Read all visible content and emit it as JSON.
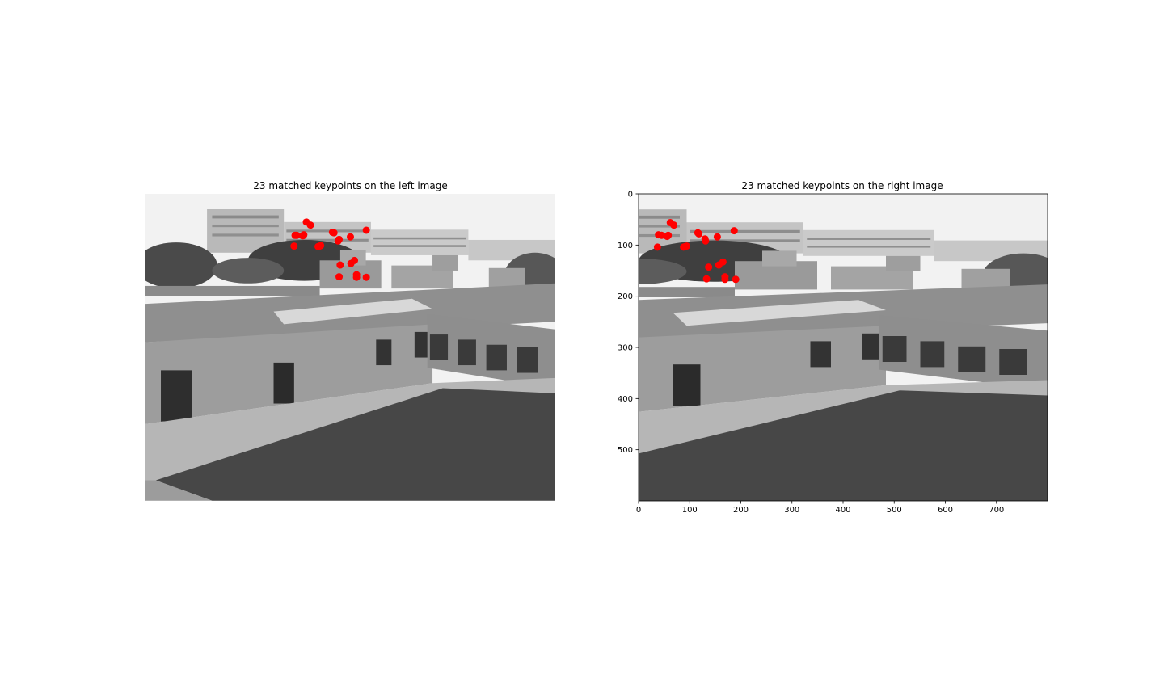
{
  "chart_data": [
    {
      "type": "scatter",
      "panel": "left",
      "title": "23 matched keypoints on the left image",
      "background": "grayscale photograph of a courtyard with surrounding buildings",
      "axes_visible": false,
      "xlim": [
        0,
        800
      ],
      "ylim": [
        600,
        0
      ],
      "marker_color": "#ff0000",
      "points": [
        {
          "x": 314,
          "y": 55
        },
        {
          "x": 322,
          "y": 61
        },
        {
          "x": 295,
          "y": 81
        },
        {
          "x": 292,
          "y": 81
        },
        {
          "x": 307,
          "y": 82
        },
        {
          "x": 309,
          "y": 80
        },
        {
          "x": 365,
          "y": 75
        },
        {
          "x": 431,
          "y": 71
        },
        {
          "x": 400,
          "y": 84
        },
        {
          "x": 378,
          "y": 89
        },
        {
          "x": 376,
          "y": 92
        },
        {
          "x": 290,
          "y": 102
        },
        {
          "x": 337,
          "y": 103
        },
        {
          "x": 342,
          "y": 101
        },
        {
          "x": 408,
          "y": 130
        },
        {
          "x": 401,
          "y": 136
        },
        {
          "x": 380,
          "y": 139
        },
        {
          "x": 412,
          "y": 158
        },
        {
          "x": 412,
          "y": 163
        },
        {
          "x": 431,
          "y": 163
        },
        {
          "x": 378,
          "y": 162
        },
        {
          "x": 368,
          "y": 76
        },
        {
          "x": 340,
          "y": 102
        }
      ]
    },
    {
      "type": "scatter",
      "panel": "right",
      "title": "23 matched keypoints on the right image",
      "background": "grayscale photograph of the same courtyard from a shifted viewpoint",
      "axes_visible": true,
      "xlim": [
        0,
        800
      ],
      "ylim": [
        600,
        0
      ],
      "xticks": [
        0,
        100,
        200,
        300,
        400,
        500,
        600,
        700
      ],
      "yticks": [
        0,
        100,
        200,
        300,
        400,
        500
      ],
      "marker_color": "#ff0000",
      "points": [
        {
          "x": 62,
          "y": 56
        },
        {
          "x": 69,
          "y": 61
        },
        {
          "x": 39,
          "y": 80
        },
        {
          "x": 45,
          "y": 81
        },
        {
          "x": 56,
          "y": 83
        },
        {
          "x": 58,
          "y": 81
        },
        {
          "x": 116,
          "y": 76
        },
        {
          "x": 187,
          "y": 72
        },
        {
          "x": 154,
          "y": 84
        },
        {
          "x": 130,
          "y": 88
        },
        {
          "x": 131,
          "y": 92
        },
        {
          "x": 37,
          "y": 104
        },
        {
          "x": 88,
          "y": 104
        },
        {
          "x": 94,
          "y": 102
        },
        {
          "x": 165,
          "y": 133
        },
        {
          "x": 157,
          "y": 139
        },
        {
          "x": 137,
          "y": 143
        },
        {
          "x": 169,
          "y": 162
        },
        {
          "x": 169,
          "y": 167
        },
        {
          "x": 190,
          "y": 167
        },
        {
          "x": 133,
          "y": 166
        },
        {
          "x": 118,
          "y": 78
        },
        {
          "x": 91,
          "y": 103
        }
      ]
    }
  ]
}
